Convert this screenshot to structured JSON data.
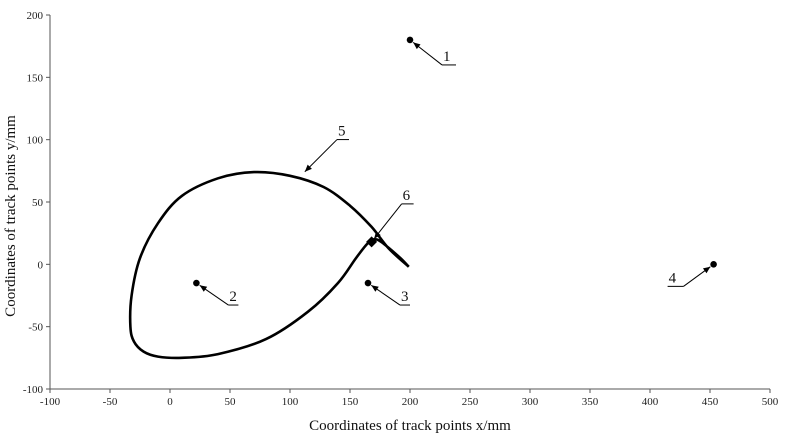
{
  "chart_data": {
    "type": "scatter",
    "title": "",
    "xlabel": "Coordinates of track points x/mm",
    "ylabel": "Coordinates of track points y/mm",
    "xlim": [
      -100,
      500
    ],
    "ylim": [
      -100,
      200
    ],
    "x_ticks": [
      -100,
      -50,
      0,
      50,
      100,
      150,
      200,
      250,
      300,
      350,
      400,
      450,
      500
    ],
    "y_ticks": [
      -100,
      -50,
      0,
      50,
      100,
      150,
      200
    ],
    "grid": false,
    "legend": "none",
    "colors": {
      "ink": "#000000",
      "axis": "#555555"
    },
    "points": [
      {
        "label": "1",
        "x": 200,
        "y": 180
      },
      {
        "label": "2",
        "x": 22,
        "y": -15
      },
      {
        "label": "3",
        "x": 165,
        "y": -15
      },
      {
        "label": "4",
        "x": 453,
        "y": 0
      },
      {
        "label": "6",
        "x": 168,
        "y": 18
      }
    ],
    "curve": {
      "label": "5",
      "x": [
        199,
        182,
        168,
        150,
        128,
        100,
        70,
        40,
        10,
        -10,
        -25,
        -32,
        -33,
        -30,
        -22,
        -10,
        10,
        40,
        80,
        115,
        140,
        155,
        165,
        172,
        180,
        192,
        199
      ],
      "y": [
        -2,
        13,
        30,
        47,
        62,
        71,
        74,
        69,
        55,
        33,
        5,
        -25,
        -50,
        -62,
        -70,
        -74,
        -75,
        -72,
        -60,
        -38,
        -15,
        5,
        17,
        20,
        15,
        5,
        -2
      ]
    }
  }
}
